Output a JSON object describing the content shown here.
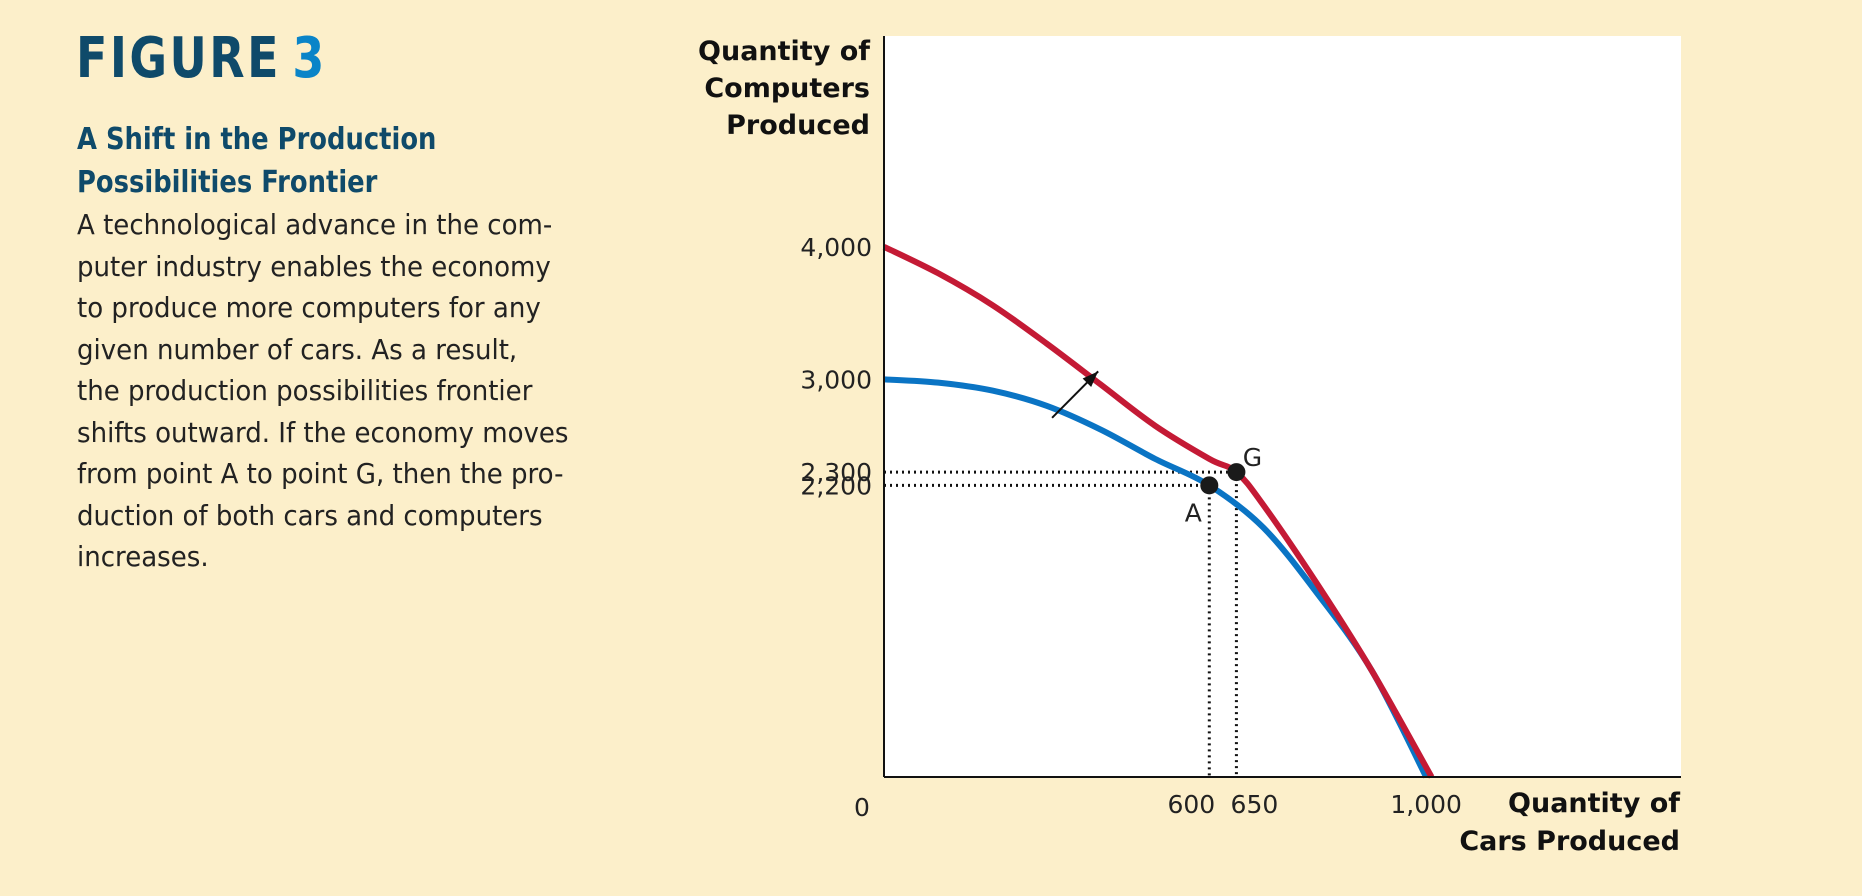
{
  "figure": {
    "label": "FIGURE",
    "number": "3",
    "title_lines": [
      "A Shift in the Production",
      "Possibilities Frontier"
    ],
    "caption_lines": [
      "A technological advance in the com-",
      "puter industry enables the economy",
      "to produce more computers for any",
      "given number of cars. As a result,",
      "the production possibilities frontier",
      "shifts outward. If the economy moves",
      "from point A to point G, then the pro-",
      "duction of both cars and computers",
      "increases."
    ]
  },
  "chart_data": {
    "type": "line",
    "ylabel_lines": [
      "Quantity of",
      "Computers",
      "Produced"
    ],
    "xlabel_lines": [
      "Quantity of",
      "Cars Produced"
    ],
    "origin_label": "0",
    "xlim": [
      0,
      1470
    ],
    "ylim": [
      0,
      5590
    ],
    "x_ticks": [
      {
        "value": 600,
        "label": "600"
      },
      {
        "value": 650,
        "label": "650"
      },
      {
        "value": 1000,
        "label": "1,000"
      }
    ],
    "y_ticks": [
      {
        "value": 4000,
        "label": "4,000"
      },
      {
        "value": 3000,
        "label": "3,000"
      },
      {
        "value": 2300,
        "label": "2,300"
      },
      {
        "value": 2200,
        "label": "2,200"
      }
    ],
    "series": [
      {
        "key": "original",
        "color": "#0a74c4",
        "points": [
          [
            0,
            3000
          ],
          [
            100,
            2975
          ],
          [
            200,
            2915
          ],
          [
            300,
            2800
          ],
          [
            400,
            2620
          ],
          [
            500,
            2400
          ],
          [
            600,
            2200
          ],
          [
            700,
            1880
          ],
          [
            800,
            1380
          ],
          [
            900,
            800
          ],
          [
            1000,
            0
          ]
        ]
      },
      {
        "key": "shifted",
        "color": "#c41a35",
        "points": [
          [
            0,
            4000
          ],
          [
            100,
            3800
          ],
          [
            200,
            3560
          ],
          [
            300,
            3270
          ],
          [
            400,
            2960
          ],
          [
            500,
            2650
          ],
          [
            600,
            2400
          ],
          [
            650,
            2300
          ],
          [
            700,
            2050
          ],
          [
            800,
            1450
          ],
          [
            900,
            800
          ],
          [
            1010,
            0
          ]
        ]
      }
    ],
    "points": [
      {
        "label": "A",
        "x": 600,
        "y": 2200
      },
      {
        "label": "G",
        "x": 650,
        "y": 2300
      }
    ],
    "shift_arrow": {
      "from": [
        310,
        2710
      ],
      "to": [
        395,
        3060
      ]
    },
    "grid": false,
    "legend": "none"
  }
}
